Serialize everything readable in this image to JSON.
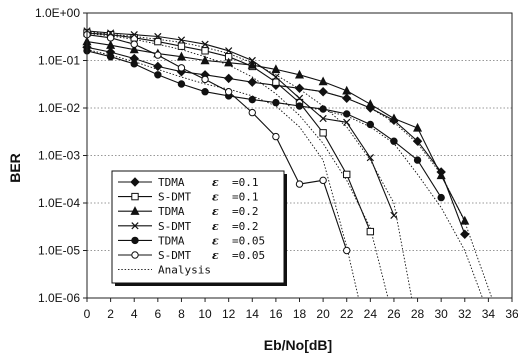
{
  "chart_data": {
    "type": "line",
    "xlabel": "Eb/No[dB]",
    "ylabel": "BER",
    "xlim": [
      0,
      36
    ],
    "ylim": [
      1e-06,
      1
    ],
    "yscale": "log",
    "xticks": [
      "0",
      "2",
      "4",
      "6",
      "8",
      "10",
      "12",
      "14",
      "16",
      "18",
      "20",
      "22",
      "24",
      "26",
      "28",
      "30",
      "32",
      "34",
      "36"
    ],
    "yticks": [
      "1.0E+00",
      "1.0E-01",
      "1.0E-02",
      "1.0E-03",
      "1.0E-04",
      "1.0E-05",
      "1.0E-06"
    ],
    "grid": "horizontal dotted",
    "legend_position": "bottom-left",
    "series": [
      {
        "name": "TDMA",
        "eps_label": "ε",
        "eps_value": "=0.1",
        "marker": "diamond",
        "line": "solid",
        "points": [
          [
            0,
            0.19
          ],
          [
            2,
            0.15
          ],
          [
            4,
            0.11
          ],
          [
            6,
            0.075
          ],
          [
            8,
            0.058
          ],
          [
            10,
            0.05
          ],
          [
            12,
            0.042
          ],
          [
            14,
            0.035
          ],
          [
            16,
            0.03
          ],
          [
            18,
            0.026
          ],
          [
            20,
            0.022
          ],
          [
            22,
            0.016
          ],
          [
            24,
            0.01
          ],
          [
            26,
            0.0055
          ],
          [
            28,
            0.002
          ],
          [
            30,
            0.00045
          ],
          [
            32,
            2.2e-05
          ]
        ]
      },
      {
        "name": "S-DMT",
        "eps_label": "ε",
        "eps_value": "=0.1",
        "marker": "square",
        "line": "solid",
        "points": [
          [
            0,
            0.38
          ],
          [
            2,
            0.35
          ],
          [
            4,
            0.3
          ],
          [
            6,
            0.25
          ],
          [
            8,
            0.2
          ],
          [
            10,
            0.16
          ],
          [
            12,
            0.12
          ],
          [
            14,
            0.075
          ],
          [
            16,
            0.035
          ],
          [
            18,
            0.013
          ],
          [
            20,
            0.003
          ],
          [
            22,
            0.0004
          ],
          [
            24,
            2.5e-05
          ]
        ]
      },
      {
        "name": "TDMA",
        "eps_label": "ε",
        "eps_value": "=0.2",
        "marker": "triangle",
        "line": "solid",
        "points": [
          [
            0,
            0.25
          ],
          [
            2,
            0.21
          ],
          [
            4,
            0.17
          ],
          [
            6,
            0.14
          ],
          [
            8,
            0.12
          ],
          [
            10,
            0.1
          ],
          [
            12,
            0.09
          ],
          [
            14,
            0.08
          ],
          [
            16,
            0.065
          ],
          [
            18,
            0.05
          ],
          [
            20,
            0.036
          ],
          [
            22,
            0.023
          ],
          [
            24,
            0.012
          ],
          [
            26,
            0.006
          ],
          [
            28,
            0.0038
          ],
          [
            30,
            0.00038
          ],
          [
            32,
            4.2e-05
          ]
        ]
      },
      {
        "name": "S-DMT",
        "eps_label": "ε",
        "eps_value": "=0.2",
        "marker": "x",
        "line": "solid",
        "points": [
          [
            0,
            0.42
          ],
          [
            2,
            0.38
          ],
          [
            4,
            0.35
          ],
          [
            6,
            0.32
          ],
          [
            8,
            0.27
          ],
          [
            10,
            0.22
          ],
          [
            12,
            0.16
          ],
          [
            14,
            0.1
          ],
          [
            16,
            0.045
          ],
          [
            18,
            0.016
          ],
          [
            20,
            0.006
          ],
          [
            22,
            0.005
          ],
          [
            24,
            0.0009
          ],
          [
            26,
            5.5e-05
          ]
        ]
      },
      {
        "name": "TDMA",
        "eps_label": "ε",
        "eps_value": "=0.05",
        "marker": "circle-filled",
        "line": "solid",
        "points": [
          [
            0,
            0.16
          ],
          [
            2,
            0.12
          ],
          [
            4,
            0.085
          ],
          [
            6,
            0.05
          ],
          [
            8,
            0.032
          ],
          [
            10,
            0.022
          ],
          [
            12,
            0.018
          ],
          [
            14,
            0.015
          ],
          [
            16,
            0.013
          ],
          [
            18,
            0.011
          ],
          [
            20,
            0.0095
          ],
          [
            22,
            0.0075
          ],
          [
            24,
            0.0045
          ],
          [
            26,
            0.002
          ],
          [
            28,
            0.0008
          ],
          [
            30,
            0.00013
          ]
        ]
      },
      {
        "name": "S-DMT",
        "eps_label": "ε",
        "eps_value": "=0.05",
        "marker": "circle-open",
        "line": "solid",
        "points": [
          [
            0,
            0.35
          ],
          [
            2,
            0.3
          ],
          [
            4,
            0.22
          ],
          [
            6,
            0.13
          ],
          [
            8,
            0.07
          ],
          [
            10,
            0.04
          ],
          [
            12,
            0.022
          ],
          [
            14,
            0.008
          ],
          [
            16,
            0.0025
          ],
          [
            18,
            0.00025
          ],
          [
            20,
            0.0003
          ],
          [
            22,
            1e-05
          ]
        ]
      },
      {
        "name": "Analysis",
        "marker": "none",
        "line": "dotted",
        "curves": [
          [
            [
              0,
              0.17
            ],
            [
              2,
              0.13
            ],
            [
              4,
              0.095
            ],
            [
              6,
              0.065
            ],
            [
              8,
              0.045
            ],
            [
              10,
              0.032
            ],
            [
              12,
              0.025
            ],
            [
              14,
              0.018
            ],
            [
              16,
              0.011
            ],
            [
              18,
              0.004
            ],
            [
              20,
              0.0008
            ],
            [
              21,
              0.0001
            ],
            [
              22,
              1.2e-05
            ],
            [
              23,
              1e-06
            ]
          ],
          [
            [
              0,
              0.37
            ],
            [
              2,
              0.33
            ],
            [
              4,
              0.28
            ],
            [
              6,
              0.22
            ],
            [
              8,
              0.17
            ],
            [
              10,
              0.12
            ],
            [
              12,
              0.08
            ],
            [
              14,
              0.045
            ],
            [
              16,
              0.02
            ],
            [
              18,
              0.007
            ],
            [
              20,
              0.0018
            ],
            [
              22,
              0.0003
            ],
            [
              24,
              3e-05
            ],
            [
              25.5,
              1e-06
            ]
          ],
          [
            [
              0,
              0.4
            ],
            [
              2,
              0.36
            ],
            [
              4,
              0.32
            ],
            [
              6,
              0.28
            ],
            [
              8,
              0.24
            ],
            [
              10,
              0.19
            ],
            [
              12,
              0.14
            ],
            [
              14,
              0.09
            ],
            [
              16,
              0.05
            ],
            [
              18,
              0.025
            ],
            [
              20,
              0.011
            ],
            [
              22,
              0.004
            ],
            [
              24,
              0.0008
            ],
            [
              26,
              0.0001
            ],
            [
              27.5,
              1e-06
            ]
          ],
          [
            [
              16,
              0.013
            ],
            [
              18,
              0.011
            ],
            [
              20,
              0.009
            ],
            [
              22,
              0.0068
            ],
            [
              24,
              0.004
            ],
            [
              26,
              0.0018
            ],
            [
              28,
              0.0004
            ],
            [
              30,
              8e-05
            ],
            [
              32,
              1e-05
            ],
            [
              33.5,
              1e-06
            ]
          ],
          [
            [
              16,
              0.03
            ],
            [
              18,
              0.026
            ],
            [
              20,
              0.022
            ],
            [
              22,
              0.016
            ],
            [
              24,
              0.01
            ],
            [
              26,
              0.005
            ],
            [
              28,
              0.0018
            ],
            [
              30,
              0.0004
            ],
            [
              32,
              4e-05
            ],
            [
              34.3,
              1e-06
            ]
          ]
        ]
      }
    ]
  }
}
